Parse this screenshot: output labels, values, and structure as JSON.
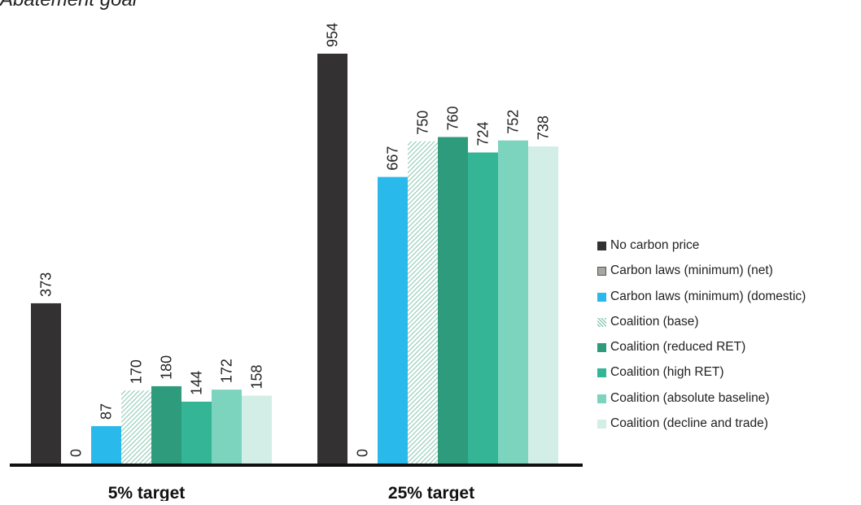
{
  "page": {
    "cropped_title": "Abatement goal"
  },
  "chart_data": {
    "type": "bar",
    "title": "",
    "xlabel": "",
    "ylabel": "",
    "categories": [
      "5% target",
      "25% target"
    ],
    "ylim": [
      0,
      1000
    ],
    "grid": false,
    "legend_position": "right",
    "series": [
      {
        "name": "No carbon price",
        "values": [
          373,
          954
        ],
        "color": "#333132",
        "pattern": "solid"
      },
      {
        "name": "Carbon laws (minimum) (net)",
        "values": [
          0,
          0
        ],
        "color": "#a7a7a1",
        "pattern": "solid"
      },
      {
        "name": "Carbon laws (minimum) (domestic)",
        "values": [
          87,
          667
        ],
        "color": "#29b9eb",
        "pattern": "solid"
      },
      {
        "name": "Coalition (base)",
        "values": [
          170,
          750
        ],
        "color": "#9fd3c1",
        "pattern": "hatch"
      },
      {
        "name": "Coalition (reduced RET)",
        "values": [
          180,
          760
        ],
        "color": "#2e9b7d",
        "pattern": "solid"
      },
      {
        "name": "Coalition (high RET)",
        "values": [
          144,
          724
        ],
        "color": "#33b596",
        "pattern": "solid"
      },
      {
        "name": "Coalition (absolute baseline)",
        "values": [
          172,
          752
        ],
        "color": "#7cd3be",
        "pattern": "solid"
      },
      {
        "name": "Coalition (decline and trade)",
        "values": [
          158,
          738
        ],
        "color": "#d3eee6",
        "pattern": "solid"
      }
    ]
  }
}
